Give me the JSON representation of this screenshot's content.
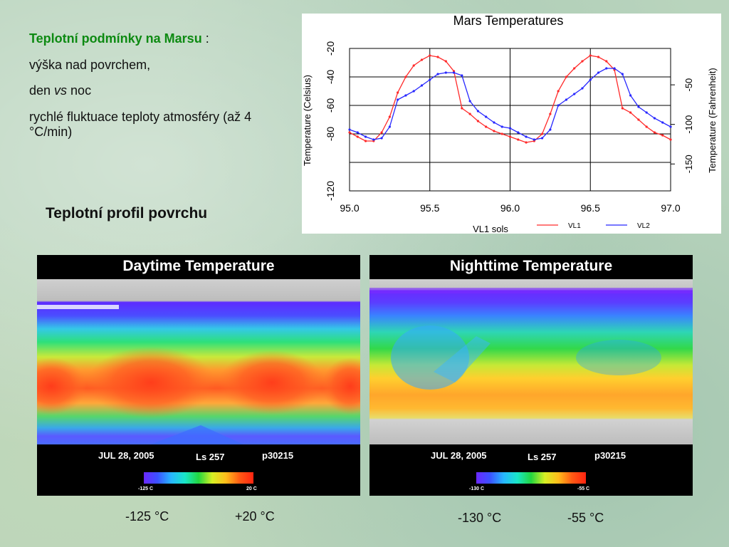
{
  "text": {
    "title_main": "Teplotní podmínky na Marsu",
    "title_suffix": " :",
    "line1": "výška nad povrchem,",
    "line2_a": "den ",
    "line2_b": "vs",
    "line2_c": " noc",
    "line3": "rychlé fluktuace teploty atmosféry (až 4 °C/min)",
    "profile_title": "Teplotní profil povrchu"
  },
  "chart_data": {
    "type": "line",
    "title": "Mars Temperatures",
    "xlabel": "VL1 sols",
    "ylabel": "Temperature (Celsius)",
    "ylabel_right": "Temperature (Fahrenheit)",
    "xlim": [
      95.0,
      97.0
    ],
    "ylim": [
      -120,
      -20
    ],
    "xticks": [
      "95.0",
      "95.5",
      "96.0",
      "96.5",
      "97.0"
    ],
    "yticks": [
      "-120",
      "-80",
      "-60",
      "-40",
      "-20"
    ],
    "yticks_right": [
      "-50",
      "-100",
      "-150"
    ],
    "grid": true,
    "legend_position": "bottom-right",
    "series": [
      {
        "name": "VL1",
        "color": "#ff2a2a",
        "x": [
          95.0,
          95.05,
          95.1,
          95.15,
          95.2,
          95.25,
          95.3,
          95.35,
          95.4,
          95.45,
          95.5,
          95.55,
          95.6,
          95.65,
          95.7,
          95.75,
          95.8,
          95.85,
          95.9,
          95.95,
          96.0,
          96.05,
          96.1,
          96.15,
          96.2,
          96.25,
          96.3,
          96.35,
          96.4,
          96.45,
          96.5,
          96.55,
          96.6,
          96.65,
          96.7,
          96.75,
          96.8,
          96.85,
          96.9,
          96.95,
          97.0
        ],
        "y": [
          -79,
          -82,
          -85,
          -85,
          -79,
          -68,
          -51,
          -40,
          -32,
          -28,
          -25,
          -26,
          -29,
          -36,
          -62,
          -66,
          -71,
          -75,
          -78,
          -80,
          -82,
          -84,
          -86,
          -85,
          -80,
          -66,
          -50,
          -40,
          -34,
          -29,
          -25,
          -26,
          -29,
          -35,
          -62,
          -65,
          -70,
          -75,
          -79,
          -81,
          -84
        ]
      },
      {
        "name": "VL2",
        "color": "#2828ff",
        "x": [
          95.0,
          95.05,
          95.1,
          95.15,
          95.2,
          95.25,
          95.3,
          95.35,
          95.4,
          95.45,
          95.5,
          95.55,
          95.6,
          95.65,
          95.7,
          95.75,
          95.8,
          95.85,
          95.9,
          95.95,
          96.0,
          96.05,
          96.1,
          96.15,
          96.2,
          96.25,
          96.3,
          96.35,
          96.4,
          96.45,
          96.5,
          96.55,
          96.6,
          96.65,
          96.7,
          96.75,
          96.8,
          96.85,
          96.9,
          96.95,
          97.0
        ],
        "y": [
          -77,
          -79,
          -82,
          -84,
          -83,
          -75,
          -56,
          -53,
          -50,
          -46,
          -42,
          -38,
          -37,
          -37,
          -39,
          -57,
          -64,
          -68,
          -72,
          -75,
          -76,
          -79,
          -82,
          -84,
          -83,
          -77,
          -60,
          -56,
          -52,
          -48,
          -42,
          -37,
          -34,
          -34,
          -38,
          -53,
          -61,
          -65,
          -69,
          -72,
          -75
        ]
      }
    ]
  },
  "maps": [
    {
      "title": "Daytime Temperature",
      "date": "JUL 28, 2005",
      "ls": "Ls 257",
      "code": "p30215",
      "min_label": "-125 C",
      "max_label": "20 C",
      "range_min": "-125 °C",
      "range_max": "+20 °C"
    },
    {
      "title": "Nighttime Temperature",
      "date": "JUL 28, 2005",
      "ls": "Ls 257",
      "code": "p30215",
      "min_label": "-130 C",
      "max_label": "-55 C",
      "range_min": "-130 °C",
      "range_max": "-55 °C"
    }
  ]
}
